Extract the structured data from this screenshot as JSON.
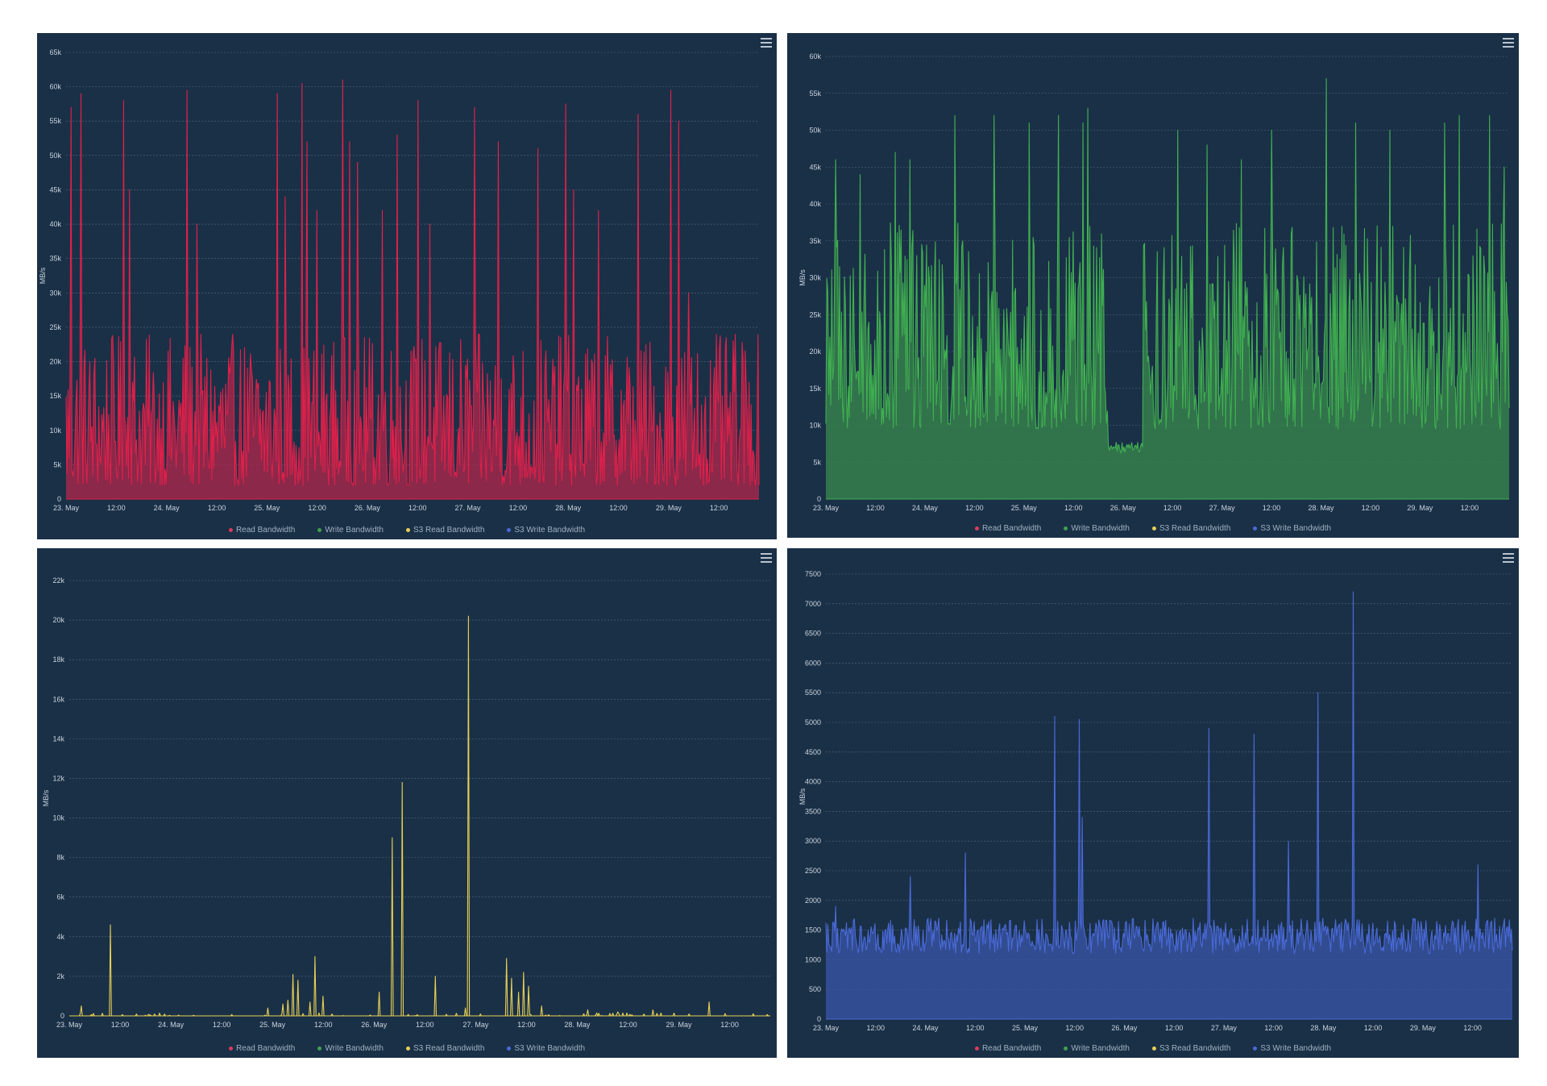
{
  "legend": [
    {
      "label": "Read Bandwidth",
      "color": "#d93a5f"
    },
    {
      "label": "Write Bandwidth",
      "color": "#3fa14f"
    },
    {
      "label": "S3 Read Bandwidth",
      "color": "#e6cf55"
    },
    {
      "label": "S3 Write Bandwidth",
      "color": "#4a6ad8"
    }
  ],
  "chart_data": [
    {
      "type": "area",
      "ylabel": "MB/s",
      "series_name": "Read Bandwidth",
      "color": "#e0204a",
      "fill": "#b3254b",
      "ylim": [
        0,
        65000
      ],
      "yticks": [
        0,
        5000,
        10000,
        15000,
        20000,
        25000,
        30000,
        35000,
        40000,
        45000,
        50000,
        55000,
        60000,
        65000
      ],
      "ytick_labels": [
        "0",
        "5k",
        "10k",
        "15k",
        "20k",
        "25k",
        "30k",
        "35k",
        "40k",
        "45k",
        "50k",
        "55k",
        "60k",
        "65k"
      ],
      "xticks": [
        "23. May",
        "12:00",
        "24. May",
        "12:00",
        "25. May",
        "12:00",
        "26. May",
        "12:00",
        "27. May",
        "12:00",
        "28. May",
        "12:00",
        "29. May",
        "12:00"
      ],
      "xrange_days": [
        0,
        6.9
      ],
      "base_level": 2000,
      "noise_amp": 22000,
      "peaks": [
        [
          0.05,
          57000
        ],
        [
          0.15,
          59000
        ],
        [
          0.57,
          58000
        ],
        [
          0.63,
          45000
        ],
        [
          1.2,
          59500
        ],
        [
          1.3,
          40000
        ],
        [
          2.1,
          59000
        ],
        [
          2.18,
          44000
        ],
        [
          2.35,
          60500
        ],
        [
          2.4,
          52000
        ],
        [
          2.5,
          42000
        ],
        [
          2.75,
          61000
        ],
        [
          2.82,
          52000
        ],
        [
          2.9,
          49000
        ],
        [
          3.15,
          42000
        ],
        [
          3.3,
          53000
        ],
        [
          3.5,
          58000
        ],
        [
          3.62,
          40000
        ],
        [
          4.07,
          57000
        ],
        [
          4.3,
          52000
        ],
        [
          4.7,
          51000
        ],
        [
          4.98,
          57500
        ],
        [
          5.05,
          45000
        ],
        [
          5.3,
          42000
        ],
        [
          5.7,
          56000
        ],
        [
          6.02,
          59500
        ],
        [
          6.1,
          55000
        ],
        [
          6.2,
          30000
        ]
      ]
    },
    {
      "type": "area",
      "ylabel": "MB/s",
      "series_name": "Write Bandwidth",
      "color": "#40b050",
      "fill": "#3a8a4c",
      "ylim": [
        0,
        60000
      ],
      "yticks": [
        0,
        5000,
        10000,
        15000,
        20000,
        25000,
        30000,
        35000,
        40000,
        45000,
        50000,
        55000,
        60000
      ],
      "ytick_labels": [
        "0",
        "5k",
        "10k",
        "15k",
        "20k",
        "25k",
        "30k",
        "35k",
        "40k",
        "45k",
        "50k",
        "55k",
        "60k"
      ],
      "xticks": [
        "23. May",
        "12:00",
        "24. May",
        "12:00",
        "25. May",
        "12:00",
        "26. May",
        "12:00",
        "27. May",
        "12:00",
        "28. May",
        "12:00",
        "29. May",
        "12:00"
      ],
      "xrange_days": [
        0,
        6.9
      ],
      "base_level": 9500,
      "noise_amp": 28000,
      "low_segment": [
        2.85,
        3.2,
        7000
      ],
      "peaks": [
        [
          0.1,
          46000
        ],
        [
          0.35,
          44000
        ],
        [
          0.7,
          47000
        ],
        [
          0.85,
          46000
        ],
        [
          1.3,
          52000
        ],
        [
          1.7,
          52000
        ],
        [
          2.05,
          51000
        ],
        [
          2.35,
          52000
        ],
        [
          2.6,
          51000
        ],
        [
          2.65,
          53000
        ],
        [
          3.55,
          50000
        ],
        [
          3.85,
          48000
        ],
        [
          4.2,
          46000
        ],
        [
          4.5,
          50000
        ],
        [
          5.05,
          57000
        ],
        [
          5.35,
          51000
        ],
        [
          5.7,
          50000
        ],
        [
          6.25,
          51000
        ],
        [
          6.4,
          52000
        ],
        [
          6.7,
          52000
        ],
        [
          6.85,
          45000
        ]
      ]
    },
    {
      "type": "line",
      "ylabel": "MB/s",
      "series_name": "S3 Read Bandwidth",
      "color": "#e6cf55",
      "fill": "none",
      "ylim": [
        0,
        22000
      ],
      "yticks": [
        0,
        2000,
        4000,
        6000,
        8000,
        10000,
        12000,
        14000,
        16000,
        18000,
        20000,
        22000
      ],
      "ytick_labels": [
        "0",
        "2k",
        "4k",
        "6k",
        "8k",
        "10k",
        "12k",
        "14k",
        "16k",
        "18k",
        "20k",
        "22k"
      ],
      "xticks": [
        "23. May",
        "12:00",
        "24. May",
        "12:00",
        "25. May",
        "12:00",
        "26. May",
        "12:00",
        "27. May",
        "12:00",
        "28. May",
        "12:00",
        "29. May",
        "12:00"
      ],
      "xrange_days": [
        0,
        6.9
      ],
      "base_level": 0,
      "noise_amp": 150,
      "peaks": [
        [
          0.12,
          500
        ],
        [
          0.4,
          4600
        ],
        [
          1.95,
          400
        ],
        [
          2.1,
          600
        ],
        [
          2.15,
          800
        ],
        [
          2.2,
          2100
        ],
        [
          2.25,
          1800
        ],
        [
          2.37,
          700
        ],
        [
          2.42,
          3000
        ],
        [
          2.5,
          1000
        ],
        [
          3.05,
          1200
        ],
        [
          3.18,
          9000
        ],
        [
          3.28,
          11800
        ],
        [
          3.6,
          2000
        ],
        [
          3.9,
          400
        ],
        [
          3.93,
          20200
        ],
        [
          4.3,
          2900
        ],
        [
          4.35,
          1900
        ],
        [
          4.42,
          1200
        ],
        [
          4.47,
          2200
        ],
        [
          4.52,
          1500
        ],
        [
          4.65,
          500
        ],
        [
          5.1,
          300
        ],
        [
          5.4,
          200
        ],
        [
          5.75,
          300
        ],
        [
          6.3,
          700
        ]
      ]
    },
    {
      "type": "area",
      "ylabel": "MB/s",
      "series_name": "S3 Write Bandwidth",
      "color": "#4a6ad8",
      "fill": "#3a55a8",
      "ylim": [
        0,
        7500
      ],
      "yticks": [
        0,
        500,
        1000,
        1500,
        2000,
        2500,
        3000,
        3500,
        4000,
        4500,
        5000,
        5500,
        6000,
        6500,
        7000,
        7500
      ],
      "ytick_labels": [
        "0",
        "500",
        "1000",
        "1500",
        "2000",
        "2500",
        "3000",
        "3500",
        "4000",
        "4500",
        "5000",
        "5500",
        "6000",
        "6500",
        "7000",
        "7500"
      ],
      "xticks": [
        "23. May",
        "12:00",
        "24. May",
        "12:00",
        "25. May",
        "12:00",
        "26. May",
        "12:00",
        "27. May",
        "12:00",
        "28. May",
        "12:00",
        "29. May",
        "12:00"
      ],
      "xrange_days": [
        0,
        6.9
      ],
      "base_level": 1400,
      "noise_amp": 600,
      "peaks": [
        [
          0.1,
          1900
        ],
        [
          0.85,
          2400
        ],
        [
          1.4,
          2800
        ],
        [
          2.3,
          5100
        ],
        [
          2.55,
          5050
        ],
        [
          2.58,
          3400
        ],
        [
          3.85,
          4900
        ],
        [
          4.3,
          4800
        ],
        [
          4.65,
          3000
        ],
        [
          4.95,
          5500
        ],
        [
          5.3,
          7200
        ],
        [
          6.55,
          2600
        ]
      ]
    }
  ]
}
